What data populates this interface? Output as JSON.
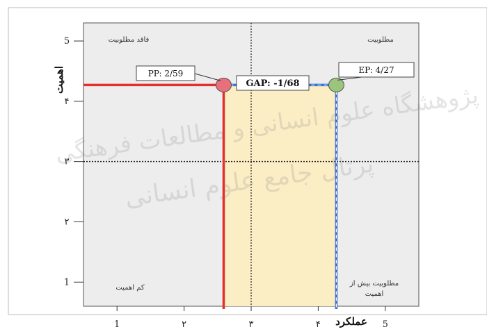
{
  "chart_data": {
    "type": "scatter",
    "xlabel": "عملکرد",
    "ylabel": "اهمیت",
    "xlim": [
      0.5,
      5.5
    ],
    "ylim": [
      0.6,
      5.3
    ],
    "x_ticks": [
      {
        "value": 1,
        "label": "1"
      },
      {
        "value": 2,
        "label": "۲"
      },
      {
        "value": 3,
        "label": "۳"
      },
      {
        "value": 4,
        "label": "۴"
      },
      {
        "value": 5,
        "label": "5"
      }
    ],
    "y_ticks": [
      {
        "value": 1,
        "label": "1"
      },
      {
        "value": 2,
        "label": "۲"
      },
      {
        "value": 3,
        "label": "۳"
      },
      {
        "value": 4,
        "label": "۴"
      },
      {
        "value": 5,
        "label": "5"
      }
    ],
    "divider_x": 3,
    "divider_y": 3,
    "quadrants": {
      "top_left": "فاقد مطلوبیت",
      "top_right": "مطلوبیت",
      "bottom_left": "کم اهمیت",
      "bottom_right": "مطلوبیت بیش از اهمیت"
    },
    "points": [
      {
        "name": "PP",
        "label": "PP: 2/59",
        "x": 2.59,
        "y": 4.27,
        "color": "#e8707a"
      },
      {
        "name": "EP",
        "label": "EP: 4/27",
        "x": 4.27,
        "y": 4.27,
        "color": "#9bc47d"
      }
    ],
    "gap": {
      "label": "GAP: -1/68",
      "value": -1.68,
      "from": 2.59,
      "to": 4.27
    },
    "watermark_lines": [
      "پژوهشگاه علوم انسانی و مطالعات فرهنگی",
      "پرتال جامع علوم انسانی"
    ],
    "colors": {
      "plot_bg": "#ededed",
      "gap_fill": "#fbedc4",
      "pp_line": "#e03030",
      "ep_line": "#3a6fd0",
      "divider": "#222222"
    }
  }
}
